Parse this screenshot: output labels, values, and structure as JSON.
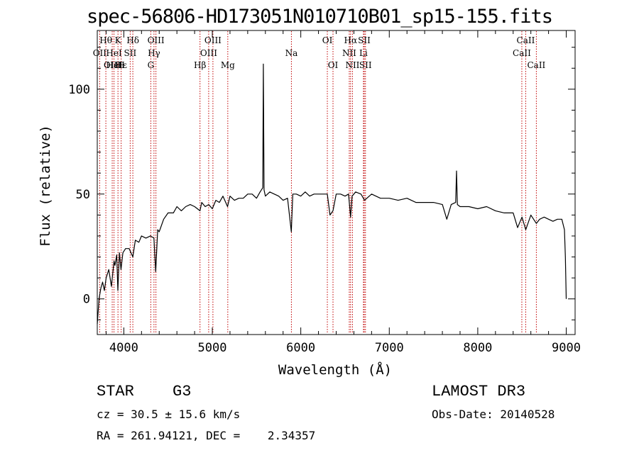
{
  "chart_data": {
    "type": "line",
    "title": "spec-56806-HD173051N010710B01_sp15-155.fits",
    "xlabel": "Wavelength (Å)",
    "ylabel": "Flux (relative)",
    "xlim": [
      3700,
      9100
    ],
    "ylim": [
      -17,
      128
    ],
    "x_ticks": [
      "4000",
      "5000",
      "6000",
      "7000",
      "8000",
      "9000"
    ],
    "y_ticks": [
      "0",
      "50",
      "100"
    ],
    "series": [
      {
        "name": "flux",
        "x": [
          3700,
          3720,
          3740,
          3760,
          3780,
          3800,
          3830,
          3860,
          3889,
          3900,
          3920,
          3933,
          3950,
          3968,
          3990,
          4020,
          4060,
          4102,
          4130,
          4170,
          4200,
          4250,
          4300,
          4340,
          4360,
          4383,
          4400,
          4450,
          4500,
          4560,
          4600,
          4650,
          4700,
          4750,
          4800,
          4861,
          4880,
          4920,
          4960,
          5000,
          5040,
          5080,
          5120,
          5172,
          5200,
          5250,
          5300,
          5350,
          5400,
          5450,
          5500,
          5540,
          5570,
          5577,
          5585,
          5600,
          5650,
          5700,
          5750,
          5800,
          5850,
          5893,
          5910,
          5950,
          6000,
          6050,
          6100,
          6150,
          6200,
          6250,
          6300,
          6330,
          6364,
          6400,
          6450,
          6500,
          6540,
          6563,
          6580,
          6620,
          6680,
          6720,
          6800,
          6900,
          7000,
          7100,
          7200,
          7300,
          7400,
          7500,
          7600,
          7650,
          7700,
          7750,
          7760,
          7770,
          7800,
          7900,
          8000,
          8100,
          8200,
          8300,
          8400,
          8450,
          8500,
          8542,
          8600,
          8662,
          8700,
          8750,
          8800,
          8850,
          8900,
          8950,
          8980,
          8990,
          9000
        ],
        "values": [
          -12,
          0,
          5,
          8,
          4,
          10,
          14,
          6,
          18,
          16,
          21,
          4,
          22,
          14,
          22,
          24,
          24,
          20,
          28,
          27,
          30,
          29,
          30,
          29,
          13,
          33,
          32,
          38,
          41,
          41,
          44,
          42,
          44,
          45,
          44,
          42,
          46,
          44,
          45,
          43,
          47,
          46,
          49,
          44,
          49,
          47,
          48,
          48,
          50,
          50,
          48,
          51,
          53,
          112,
          52,
          49,
          51,
          50,
          49,
          47,
          48,
          32,
          50,
          50,
          49,
          51,
          49,
          50,
          50,
          50,
          50,
          40,
          42,
          50,
          50,
          49,
          50,
          39,
          49,
          51,
          50,
          47,
          50,
          48,
          48,
          47,
          48,
          46,
          46,
          46,
          45,
          38,
          45,
          46,
          61,
          45,
          44,
          44,
          43,
          44,
          42,
          41,
          41,
          34,
          39,
          33,
          40,
          36,
          38,
          39,
          38,
          37,
          38,
          38,
          33,
          20,
          0
        ]
      }
    ],
    "lines": [
      {
        "label": "Hθ",
        "x": 3797,
        "row": 0
      },
      {
        "label": "OII",
        "x": 3727,
        "row": 1
      },
      {
        "label": "OIII",
        "x": 3869,
        "row": 2
      },
      {
        "label": "HeI",
        "x": 3889,
        "row": 2
      },
      {
        "label": "Hε",
        "x": 3970,
        "row": 2
      },
      {
        "label": "K",
        "x": 3934,
        "row": 0
      },
      {
        "label": "HeI",
        "x": 3889,
        "row": 1
      },
      {
        "label": "H",
        "x": 3969,
        "row": 2
      },
      {
        "label": "Hδ",
        "x": 4102,
        "row": 0
      },
      {
        "label": "SII",
        "x": 4072,
        "row": 1
      },
      {
        "label": "OIII",
        "x": 4363,
        "row": 0
      },
      {
        "label": "Hγ",
        "x": 4341,
        "row": 1
      },
      {
        "label": "G",
        "x": 4305,
        "row": 2
      },
      {
        "label": "Hβ",
        "x": 4861,
        "row": 2
      },
      {
        "label": "OIII",
        "x": 5007,
        "row": 0
      },
      {
        "label": "OIII",
        "x": 4959,
        "row": 1
      },
      {
        "label": "Mg",
        "x": 5175,
        "row": 2
      },
      {
        "label": "Na",
        "x": 5894,
        "row": 1
      },
      {
        "label": "OI",
        "x": 6300,
        "row": 0
      },
      {
        "label": "OI",
        "x": 6364,
        "row": 2
      },
      {
        "label": "Hα",
        "x": 6563,
        "row": 0
      },
      {
        "label": "NII",
        "x": 6548,
        "row": 1
      },
      {
        "label": "NII",
        "x": 6584,
        "row": 2
      },
      {
        "label": "SII",
        "x": 6717,
        "row": 0
      },
      {
        "label": "Li",
        "x": 6708,
        "row": 1
      },
      {
        "label": "SII",
        "x": 6731,
        "row": 2
      },
      {
        "label": "CaII",
        "x": 8542,
        "row": 0
      },
      {
        "label": "CaII",
        "x": 8498,
        "row": 1
      },
      {
        "label": "CaII",
        "x": 8662,
        "row": 2
      }
    ]
  },
  "info": {
    "object_type": "STAR",
    "subclass": "G3",
    "survey": "LAMOST DR3",
    "cz": "cz = 30.5 ± 15.6 km/s",
    "obs_date": "Obs-Date: 20140528",
    "coords": "RA = 261.94121, DEC =    2.34357"
  }
}
